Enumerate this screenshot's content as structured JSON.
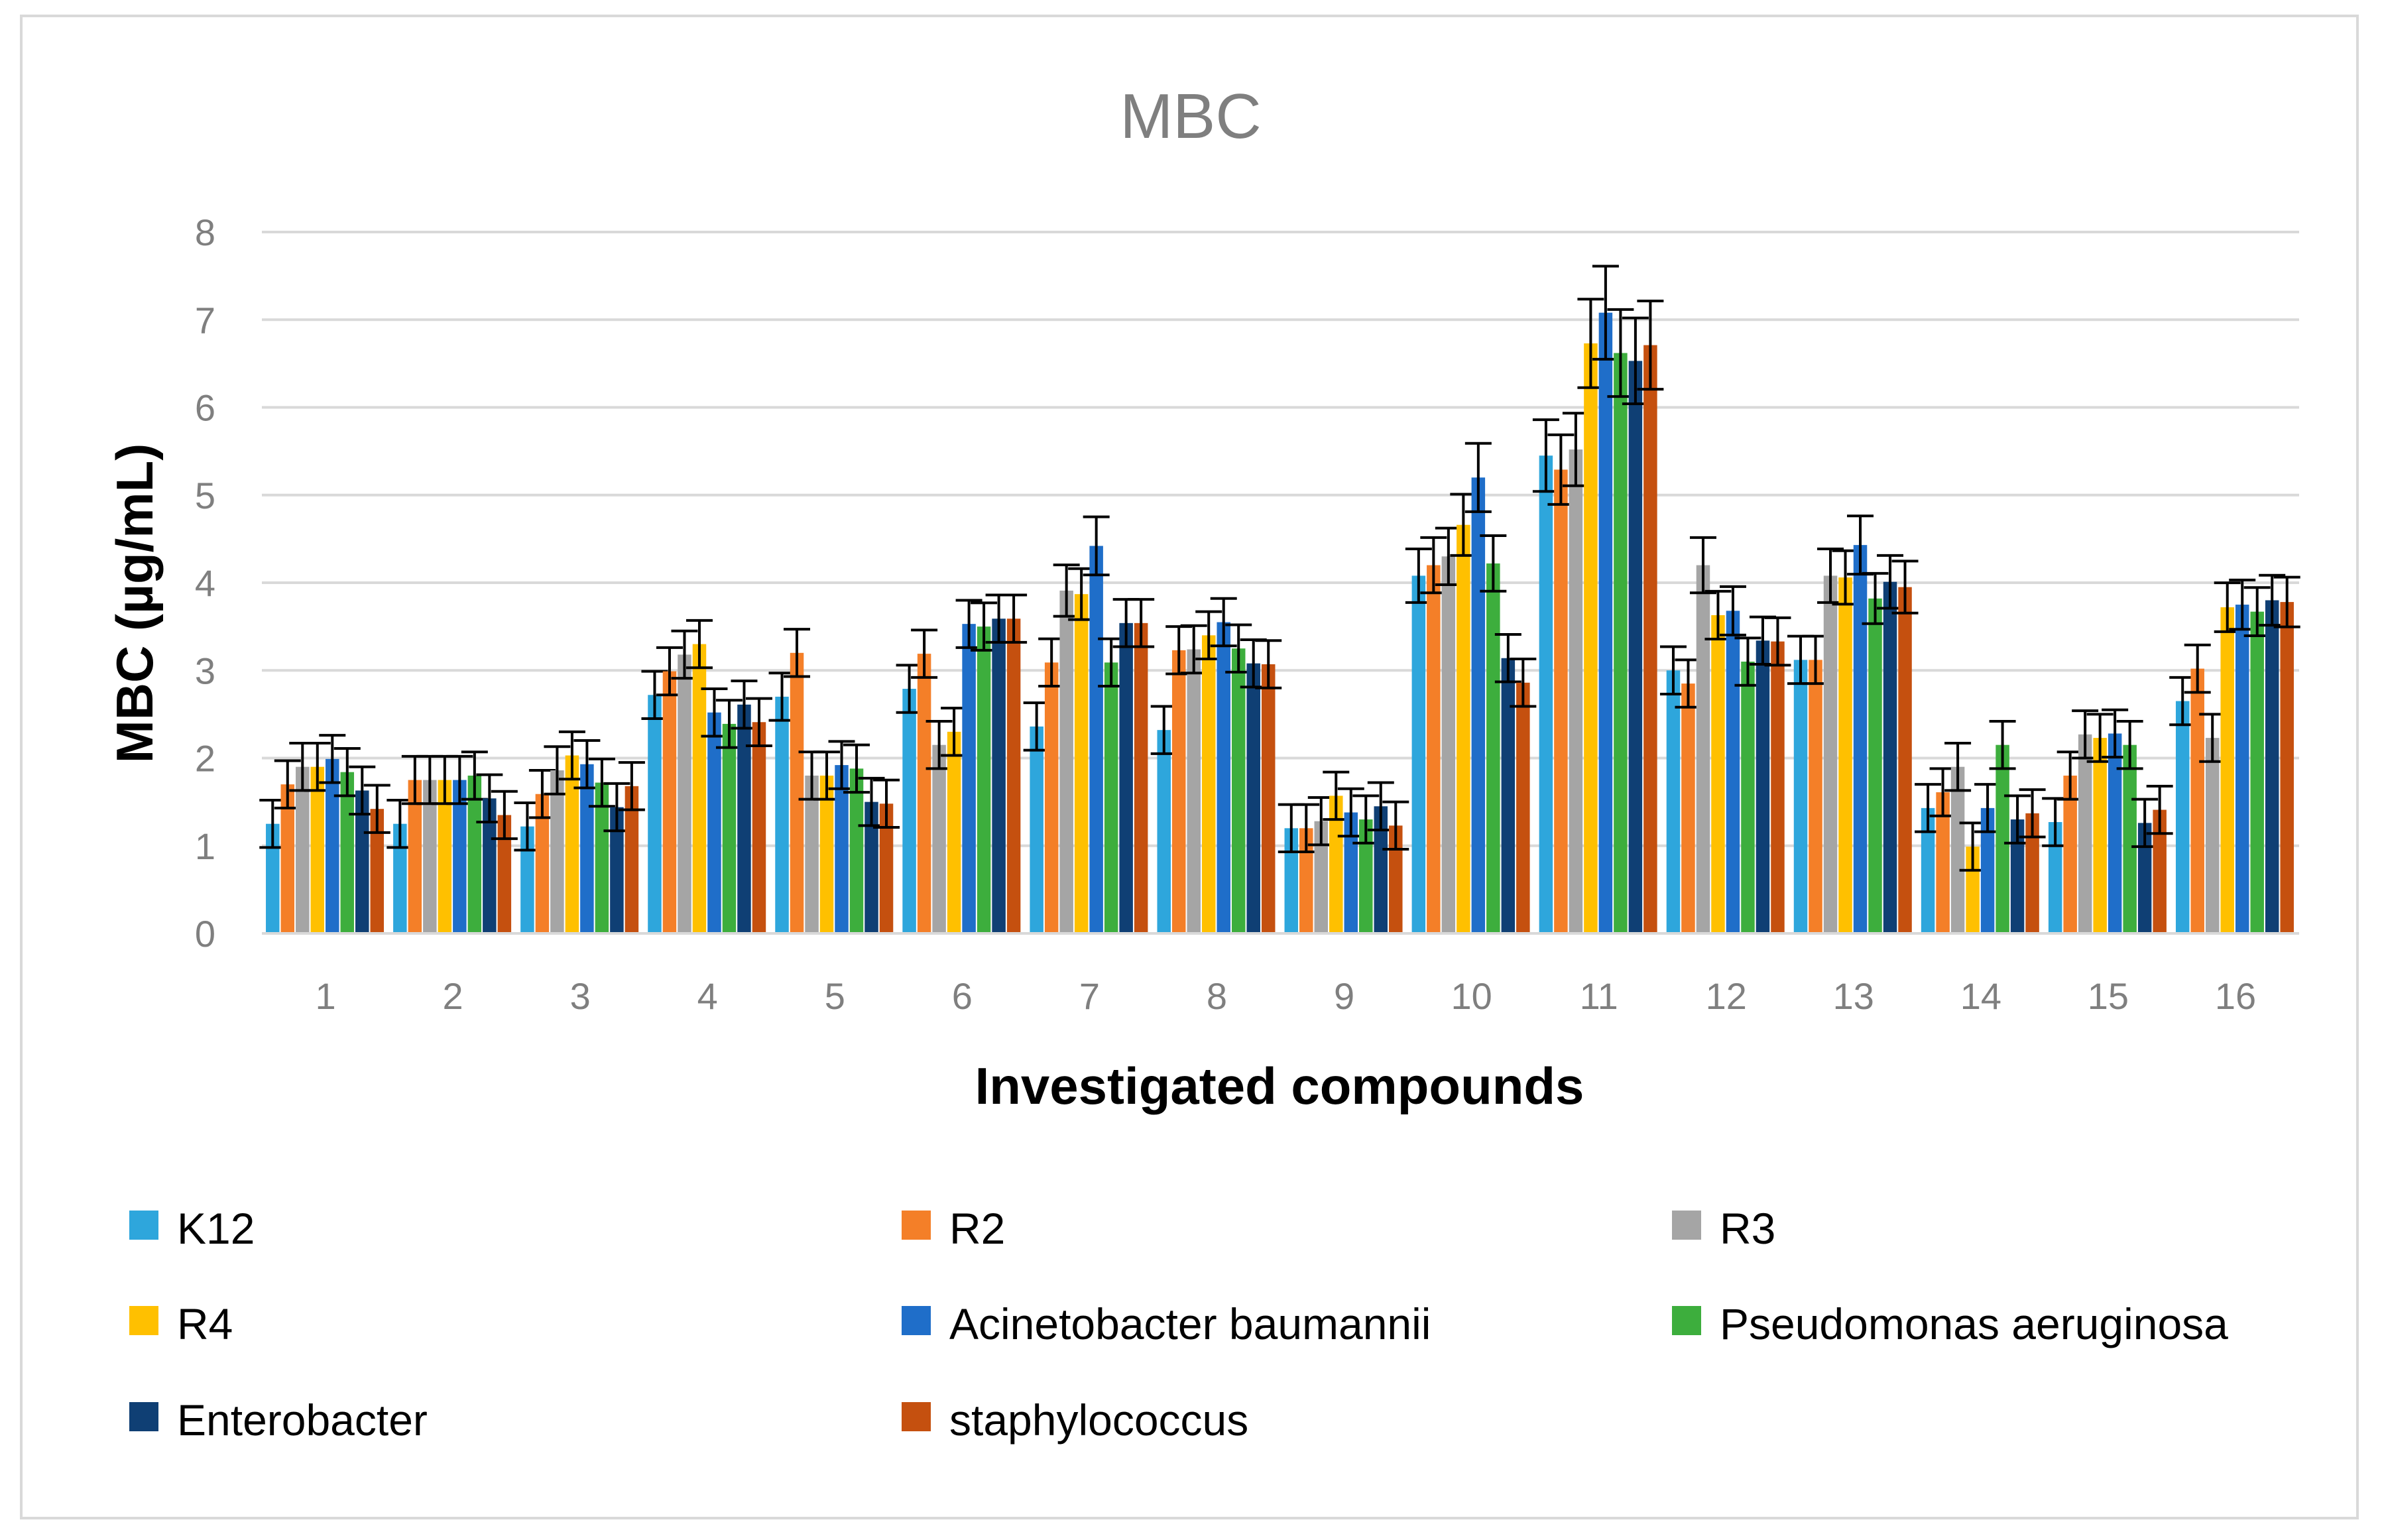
{
  "chart_data": {
    "type": "bar",
    "title": "MBC",
    "xlabel": "Investigated compounds",
    "ylabel": "MBC (µg/mL)",
    "ylim": [
      0,
      8
    ],
    "yticks": [
      "0",
      "1",
      "2",
      "3",
      "4",
      "5",
      "6",
      "7",
      "8"
    ],
    "grid": true,
    "legend_position": "bottom",
    "categories": [
      "1",
      "2",
      "3",
      "4",
      "5",
      "6",
      "7",
      "8",
      "9",
      "10",
      "11",
      "12",
      "13",
      "14",
      "15",
      "16"
    ],
    "series": [
      {
        "name": "K12",
        "color": "#2ea6dc",
        "values": [
          1.25,
          1.25,
          1.22,
          2.72,
          2.7,
          2.79,
          2.36,
          2.32,
          1.2,
          4.08,
          5.45,
          3.0,
          3.12,
          1.43,
          1.27,
          2.65
        ]
      },
      {
        "name": "R2",
        "color": "#f47f28",
        "values": [
          1.7,
          1.75,
          1.59,
          2.99,
          3.2,
          3.19,
          3.09,
          3.23,
          1.2,
          4.2,
          5.29,
          2.85,
          3.12,
          1.61,
          1.8,
          3.02
        ]
      },
      {
        "name": "R3",
        "color": "#a5a5a5",
        "values": [
          1.9,
          1.75,
          1.86,
          3.18,
          1.8,
          2.15,
          3.91,
          3.24,
          1.28,
          4.3,
          5.52,
          4.2,
          4.08,
          1.9,
          2.27,
          2.23
        ]
      },
      {
        "name": "R4",
        "color": "#ffc000",
        "values": [
          1.9,
          1.75,
          2.03,
          3.3,
          1.8,
          2.3,
          3.87,
          3.4,
          1.57,
          4.66,
          6.73,
          3.63,
          4.06,
          0.99,
          2.23,
          3.72
        ]
      },
      {
        "name": "Acinetobacter baumannii",
        "color": "#1f6ec9",
        "values": [
          1.99,
          1.75,
          1.93,
          2.52,
          1.92,
          3.53,
          4.42,
          3.55,
          1.38,
          5.2,
          7.08,
          3.68,
          4.43,
          1.43,
          2.28,
          3.75
        ]
      },
      {
        "name": "Pseudomonas aeruginosa",
        "color": "#3dae3d",
        "values": [
          1.84,
          1.8,
          1.72,
          2.39,
          1.88,
          3.5,
          3.09,
          3.25,
          1.3,
          4.22,
          6.62,
          3.1,
          3.82,
          2.15,
          2.15,
          3.67
        ]
      },
      {
        "name": "Enterobacter",
        "color": "#0f3f74",
        "values": [
          1.63,
          1.54,
          1.44,
          2.61,
          1.5,
          3.59,
          3.54,
          3.08,
          1.45,
          3.14,
          6.53,
          3.34,
          4.01,
          1.3,
          1.26,
          3.8
        ]
      },
      {
        "name": "staphylococcus",
        "color": "#c5500f",
        "values": [
          1.42,
          1.35,
          1.68,
          2.41,
          1.48,
          3.59,
          3.54,
          3.07,
          1.23,
          2.86,
          6.71,
          3.33,
          3.95,
          1.37,
          1.41,
          3.78
        ]
      }
    ]
  }
}
